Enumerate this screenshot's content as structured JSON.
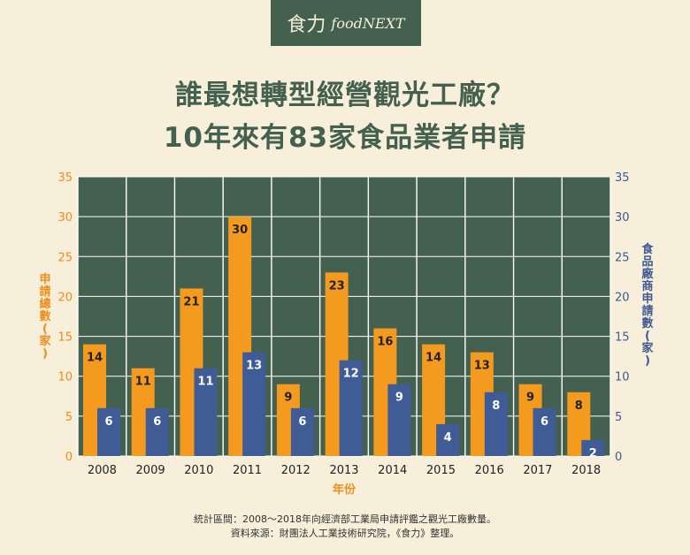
{
  "brand": {
    "zh": "食力",
    "en": "foodNEXT"
  },
  "title": {
    "line1": "誰最想轉型經營觀光工廠？",
    "line2": "10年來有83家食品業者申請"
  },
  "footer": {
    "line1": "統計區間：2008～2018年向經濟部工業局申請評鑑之觀光工廠數量。",
    "line2": "資料來源：財團法人工業技術研究院，《食力》整理。"
  },
  "chart_data": {
    "type": "bar",
    "categories": [
      "2008",
      "2009",
      "2010",
      "2011",
      "2012",
      "2013",
      "2014",
      "2015",
      "2016",
      "2017",
      "2018"
    ],
    "series": [
      {
        "name": "申請總數(家)",
        "axis": "left",
        "color": "#f39a1f",
        "values": [
          14,
          11,
          21,
          30,
          9,
          23,
          16,
          14,
          13,
          9,
          8
        ]
      },
      {
        "name": "食品廠商申請數(家)",
        "axis": "right",
        "color": "#3f5c96",
        "values": [
          6,
          6,
          11,
          13,
          6,
          12,
          9,
          4,
          8,
          6,
          2
        ]
      }
    ],
    "xlabel": "年份",
    "ylabel": "申請總數(家)",
    "y2label": "食品廠商申請數(家)",
    "ylim": [
      0,
      35
    ],
    "y2lim": [
      0,
      35
    ],
    "yticks": [
      0,
      5,
      10,
      15,
      20,
      25,
      30,
      35
    ],
    "grid": true,
    "colors": {
      "plot_bg": "#44604f",
      "grid": "#ffffff",
      "left_axis": "#f08c1a",
      "right_axis": "#3d5a94"
    }
  }
}
